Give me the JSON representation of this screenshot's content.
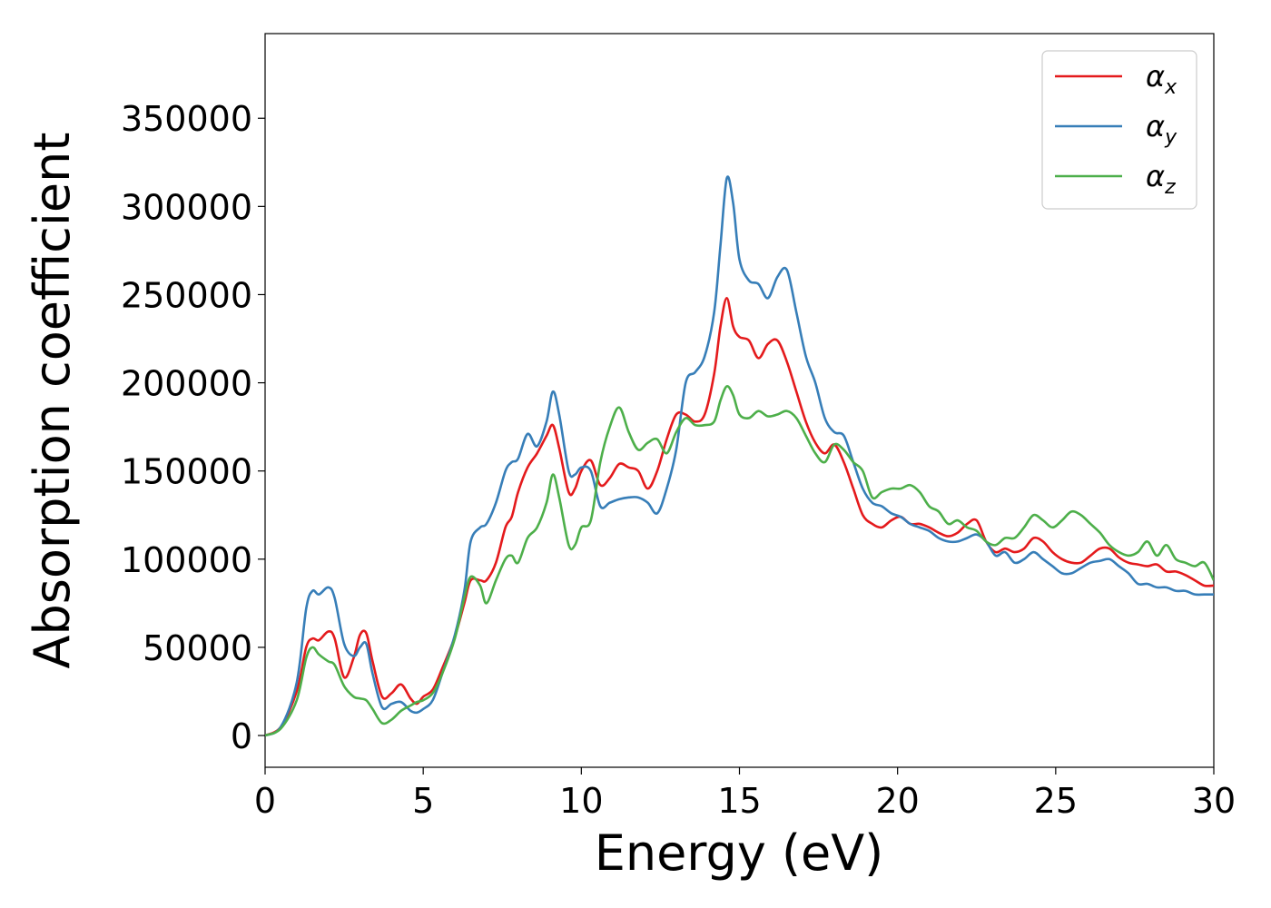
{
  "chart_data": {
    "type": "line",
    "title": "",
    "xlabel": "Energy (eV)",
    "ylabel": "Absorption coefficient",
    "xlim": [
      0,
      30
    ],
    "ylim": [
      -18000,
      398000
    ],
    "xticks": [
      0,
      5,
      10,
      15,
      20,
      25,
      30
    ],
    "yticks": [
      0,
      50000,
      100000,
      150000,
      200000,
      250000,
      300000,
      350000
    ],
    "grid": false,
    "legend_position": "top-right",
    "series": [
      {
        "name": "αx",
        "legend_base": "α",
        "legend_sub": "x",
        "color": "#e41a1c",
        "x": [
          0,
          0.5,
          1.0,
          1.3,
          1.5,
          1.7,
          2.0,
          2.2,
          2.5,
          2.8,
          3.0,
          3.2,
          3.4,
          3.7,
          4.0,
          4.3,
          4.6,
          4.8,
          5.0,
          5.3,
          5.6,
          6.0,
          6.3,
          6.5,
          6.8,
          7.0,
          7.3,
          7.6,
          7.8,
          8.0,
          8.3,
          8.6,
          8.9,
          9.1,
          9.3,
          9.6,
          9.8,
          10.0,
          10.3,
          10.6,
          10.9,
          11.2,
          11.5,
          11.8,
          12.1,
          12.4,
          12.7,
          13.0,
          13.3,
          13.6,
          13.9,
          14.2,
          14.4,
          14.6,
          14.8,
          15.0,
          15.3,
          15.6,
          15.9,
          16.2,
          16.5,
          16.8,
          17.1,
          17.4,
          17.7,
          18.0,
          18.3,
          18.6,
          18.9,
          19.2,
          19.5,
          19.8,
          20.1,
          20.4,
          20.7,
          21.0,
          21.3,
          21.6,
          21.9,
          22.2,
          22.5,
          22.8,
          23.1,
          23.4,
          23.7,
          24.0,
          24.3,
          24.6,
          24.9,
          25.2,
          25.5,
          25.8,
          26.1,
          26.4,
          26.7,
          27.0,
          27.3,
          27.6,
          27.9,
          28.2,
          28.5,
          28.8,
          29.1,
          29.4,
          29.7,
          30.0
        ],
        "y": [
          0,
          5000,
          25000,
          50000,
          55000,
          54000,
          59000,
          55000,
          33000,
          44000,
          57000,
          58000,
          42000,
          22000,
          24000,
          29000,
          21000,
          18000,
          22000,
          26000,
          38000,
          56000,
          75000,
          88000,
          88000,
          88000,
          98000,
          118000,
          124000,
          138000,
          152000,
          160000,
          170000,
          176000,
          163000,
          138000,
          140000,
          150000,
          156000,
          142000,
          146000,
          154000,
          152000,
          150000,
          140000,
          150000,
          168000,
          182000,
          182000,
          178000,
          182000,
          205000,
          232000,
          248000,
          232000,
          226000,
          224000,
          214000,
          222000,
          224000,
          212000,
          195000,
          178000,
          166000,
          160000,
          165000,
          155000,
          140000,
          125000,
          120000,
          118000,
          122000,
          124000,
          120000,
          120000,
          118000,
          115000,
          113000,
          115000,
          120000,
          122000,
          110000,
          104000,
          106000,
          104000,
          106000,
          112000,
          110000,
          104000,
          100000,
          98000,
          98000,
          102000,
          106000,
          106000,
          101000,
          98000,
          97000,
          96000,
          97000,
          93000,
          93000,
          91000,
          88000,
          85000,
          85000
        ]
      },
      {
        "name": "αy",
        "legend_base": "α",
        "legend_sub": "y",
        "color": "#377eb8",
        "x": [
          0,
          0.5,
          1.0,
          1.3,
          1.5,
          1.7,
          2.0,
          2.2,
          2.5,
          2.8,
          3.0,
          3.2,
          3.4,
          3.7,
          4.0,
          4.3,
          4.6,
          4.8,
          5.0,
          5.3,
          5.6,
          6.0,
          6.3,
          6.5,
          6.8,
          7.0,
          7.3,
          7.6,
          7.8,
          8.0,
          8.3,
          8.6,
          8.9,
          9.1,
          9.3,
          9.6,
          9.8,
          10.0,
          10.3,
          10.6,
          10.9,
          11.2,
          11.5,
          11.8,
          12.1,
          12.4,
          12.7,
          13.0,
          13.3,
          13.6,
          13.9,
          14.2,
          14.4,
          14.6,
          14.8,
          15.0,
          15.3,
          15.6,
          15.9,
          16.2,
          16.5,
          16.8,
          17.1,
          17.4,
          17.7,
          18.0,
          18.3,
          18.6,
          18.9,
          19.2,
          19.5,
          19.8,
          20.1,
          20.4,
          20.7,
          21.0,
          21.3,
          21.6,
          21.9,
          22.2,
          22.5,
          22.8,
          23.1,
          23.4,
          23.7,
          24.0,
          24.3,
          24.6,
          24.9,
          25.2,
          25.5,
          25.8,
          26.1,
          26.4,
          26.7,
          27.0,
          27.3,
          27.6,
          27.9,
          28.2,
          28.5,
          28.8,
          29.1,
          29.4,
          29.7,
          30.0
        ],
        "y": [
          0,
          5000,
          30000,
          72000,
          82000,
          80000,
          84000,
          78000,
          52000,
          45000,
          50000,
          52000,
          35000,
          16000,
          18000,
          19000,
          14000,
          13000,
          15000,
          20000,
          35000,
          57000,
          82000,
          110000,
          118000,
          120000,
          132000,
          150000,
          155000,
          157000,
          171000,
          164000,
          178000,
          195000,
          182000,
          150000,
          148000,
          152000,
          150000,
          130000,
          132000,
          134000,
          135000,
          135000,
          132000,
          126000,
          140000,
          162000,
          200000,
          206000,
          215000,
          240000,
          278000,
          316000,
          302000,
          270000,
          258000,
          256000,
          248000,
          260000,
          264000,
          240000,
          215000,
          200000,
          180000,
          172000,
          170000,
          155000,
          140000,
          132000,
          130000,
          126000,
          124000,
          120000,
          118000,
          116000,
          112000,
          110000,
          110000,
          112000,
          114000,
          110000,
          102000,
          104000,
          98000,
          100000,
          104000,
          100000,
          96000,
          92000,
          92000,
          95000,
          98000,
          99000,
          100000,
          96000,
          92000,
          86000,
          86000,
          84000,
          84000,
          82000,
          82000,
          80000,
          80000,
          80000
        ]
      },
      {
        "name": "αz",
        "legend_base": "α",
        "legend_sub": "z",
        "color": "#4daf4a",
        "x": [
          0,
          0.5,
          1.0,
          1.3,
          1.5,
          1.7,
          2.0,
          2.2,
          2.5,
          2.8,
          3.0,
          3.2,
          3.4,
          3.7,
          4.0,
          4.3,
          4.6,
          4.8,
          5.0,
          5.3,
          5.6,
          6.0,
          6.3,
          6.5,
          6.8,
          7.0,
          7.3,
          7.6,
          7.8,
          8.0,
          8.3,
          8.6,
          8.9,
          9.1,
          9.3,
          9.6,
          9.8,
          10.0,
          10.3,
          10.6,
          10.9,
          11.2,
          11.5,
          11.8,
          12.1,
          12.4,
          12.7,
          13.0,
          13.3,
          13.6,
          13.9,
          14.2,
          14.4,
          14.6,
          14.8,
          15.0,
          15.3,
          15.6,
          15.9,
          16.2,
          16.5,
          16.8,
          17.1,
          17.4,
          17.7,
          18.0,
          18.3,
          18.6,
          18.9,
          19.2,
          19.5,
          19.8,
          20.1,
          20.4,
          20.7,
          21.0,
          21.3,
          21.6,
          21.9,
          22.2,
          22.5,
          22.8,
          23.1,
          23.4,
          23.7,
          24.0,
          24.3,
          24.6,
          24.9,
          25.2,
          25.5,
          25.8,
          26.1,
          26.4,
          26.7,
          27.0,
          27.3,
          27.6,
          27.9,
          28.2,
          28.5,
          28.8,
          29.1,
          29.4,
          29.7,
          30.0
        ],
        "y": [
          0,
          4000,
          20000,
          44000,
          50000,
          46000,
          42000,
          40000,
          28000,
          22000,
          21000,
          20000,
          15000,
          7000,
          9000,
          14000,
          17000,
          19000,
          20000,
          24000,
          35000,
          55000,
          78000,
          90000,
          85000,
          75000,
          88000,
          100000,
          102000,
          98000,
          112000,
          118000,
          132000,
          148000,
          135000,
          108000,
          108000,
          118000,
          122000,
          155000,
          175000,
          186000,
          172000,
          162000,
          166000,
          168000,
          160000,
          172000,
          180000,
          176000,
          176000,
          178000,
          190000,
          198000,
          193000,
          182000,
          180000,
          184000,
          181000,
          182000,
          184000,
          180000,
          170000,
          160000,
          155000,
          165000,
          162000,
          155000,
          150000,
          135000,
          138000,
          140000,
          140000,
          142000,
          138000,
          130000,
          127000,
          120000,
          122000,
          118000,
          116000,
          110000,
          108000,
          112000,
          112000,
          118000,
          125000,
          122000,
          118000,
          122000,
          127000,
          125000,
          120000,
          115000,
          108000,
          104000,
          102000,
          104000,
          110000,
          102000,
          108000,
          100000,
          98000,
          96000,
          98000,
          88000
        ]
      }
    ]
  }
}
